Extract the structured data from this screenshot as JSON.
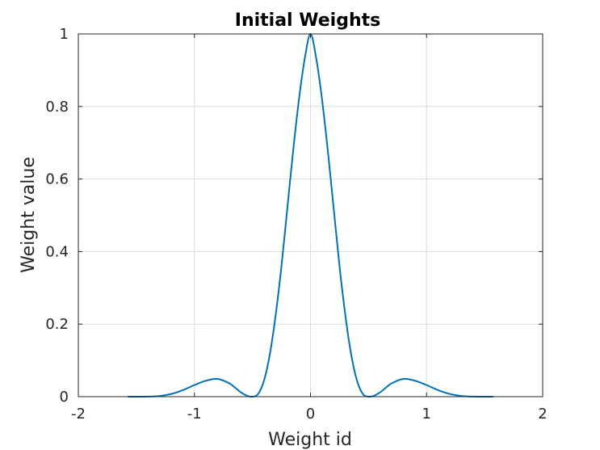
{
  "chart_data": {
    "type": "line",
    "title": "Initial Weights",
    "xlabel": "Weight id",
    "ylabel": "Weight value",
    "xlim": [
      -2,
      2
    ],
    "ylim": [
      0,
      1
    ],
    "xticks": [
      -2,
      -1,
      0,
      1,
      2
    ],
    "xtick_labels": [
      "-2",
      "-1",
      "0",
      "1",
      "2"
    ],
    "yticks": [
      0,
      0.2,
      0.4,
      0.6,
      0.8,
      1
    ],
    "ytick_labels": [
      "0",
      "0.2",
      "0.4",
      "0.6",
      "0.8",
      "1"
    ],
    "grid": true,
    "line_color": "#0072BD",
    "series": [
      {
        "x": [
          -1.571,
          -1.5,
          -1.4,
          -1.3,
          -1.2,
          -1.1,
          -1.0,
          -0.9,
          -0.8,
          -0.7,
          -0.65,
          -0.6,
          -0.55,
          -0.5,
          -0.45,
          -0.4,
          -0.35,
          -0.3,
          -0.25,
          -0.2,
          -0.15,
          -0.1,
          -0.05,
          0.0,
          0.05,
          0.1,
          0.15,
          0.2,
          0.25,
          0.3,
          0.35,
          0.4,
          0.45,
          0.5,
          0.55,
          0.6,
          0.65,
          0.7,
          0.8,
          0.9,
          1.0,
          1.1,
          1.2,
          1.3,
          1.4,
          1.5,
          1.571
        ],
        "y": [
          0.0,
          0.0,
          0.0003,
          0.002,
          0.0075,
          0.018,
          0.032,
          0.044,
          0.049,
          0.037,
          0.025,
          0.012,
          0.003,
          0.0,
          0.008,
          0.045,
          0.117,
          0.225,
          0.36,
          0.518,
          0.676,
          0.818,
          0.931,
          1.0,
          0.931,
          0.818,
          0.676,
          0.518,
          0.36,
          0.225,
          0.117,
          0.045,
          0.008,
          0.0,
          0.003,
          0.012,
          0.025,
          0.037,
          0.049,
          0.044,
          0.032,
          0.018,
          0.0075,
          0.002,
          0.0003,
          0.0,
          0.0
        ]
      }
    ]
  }
}
